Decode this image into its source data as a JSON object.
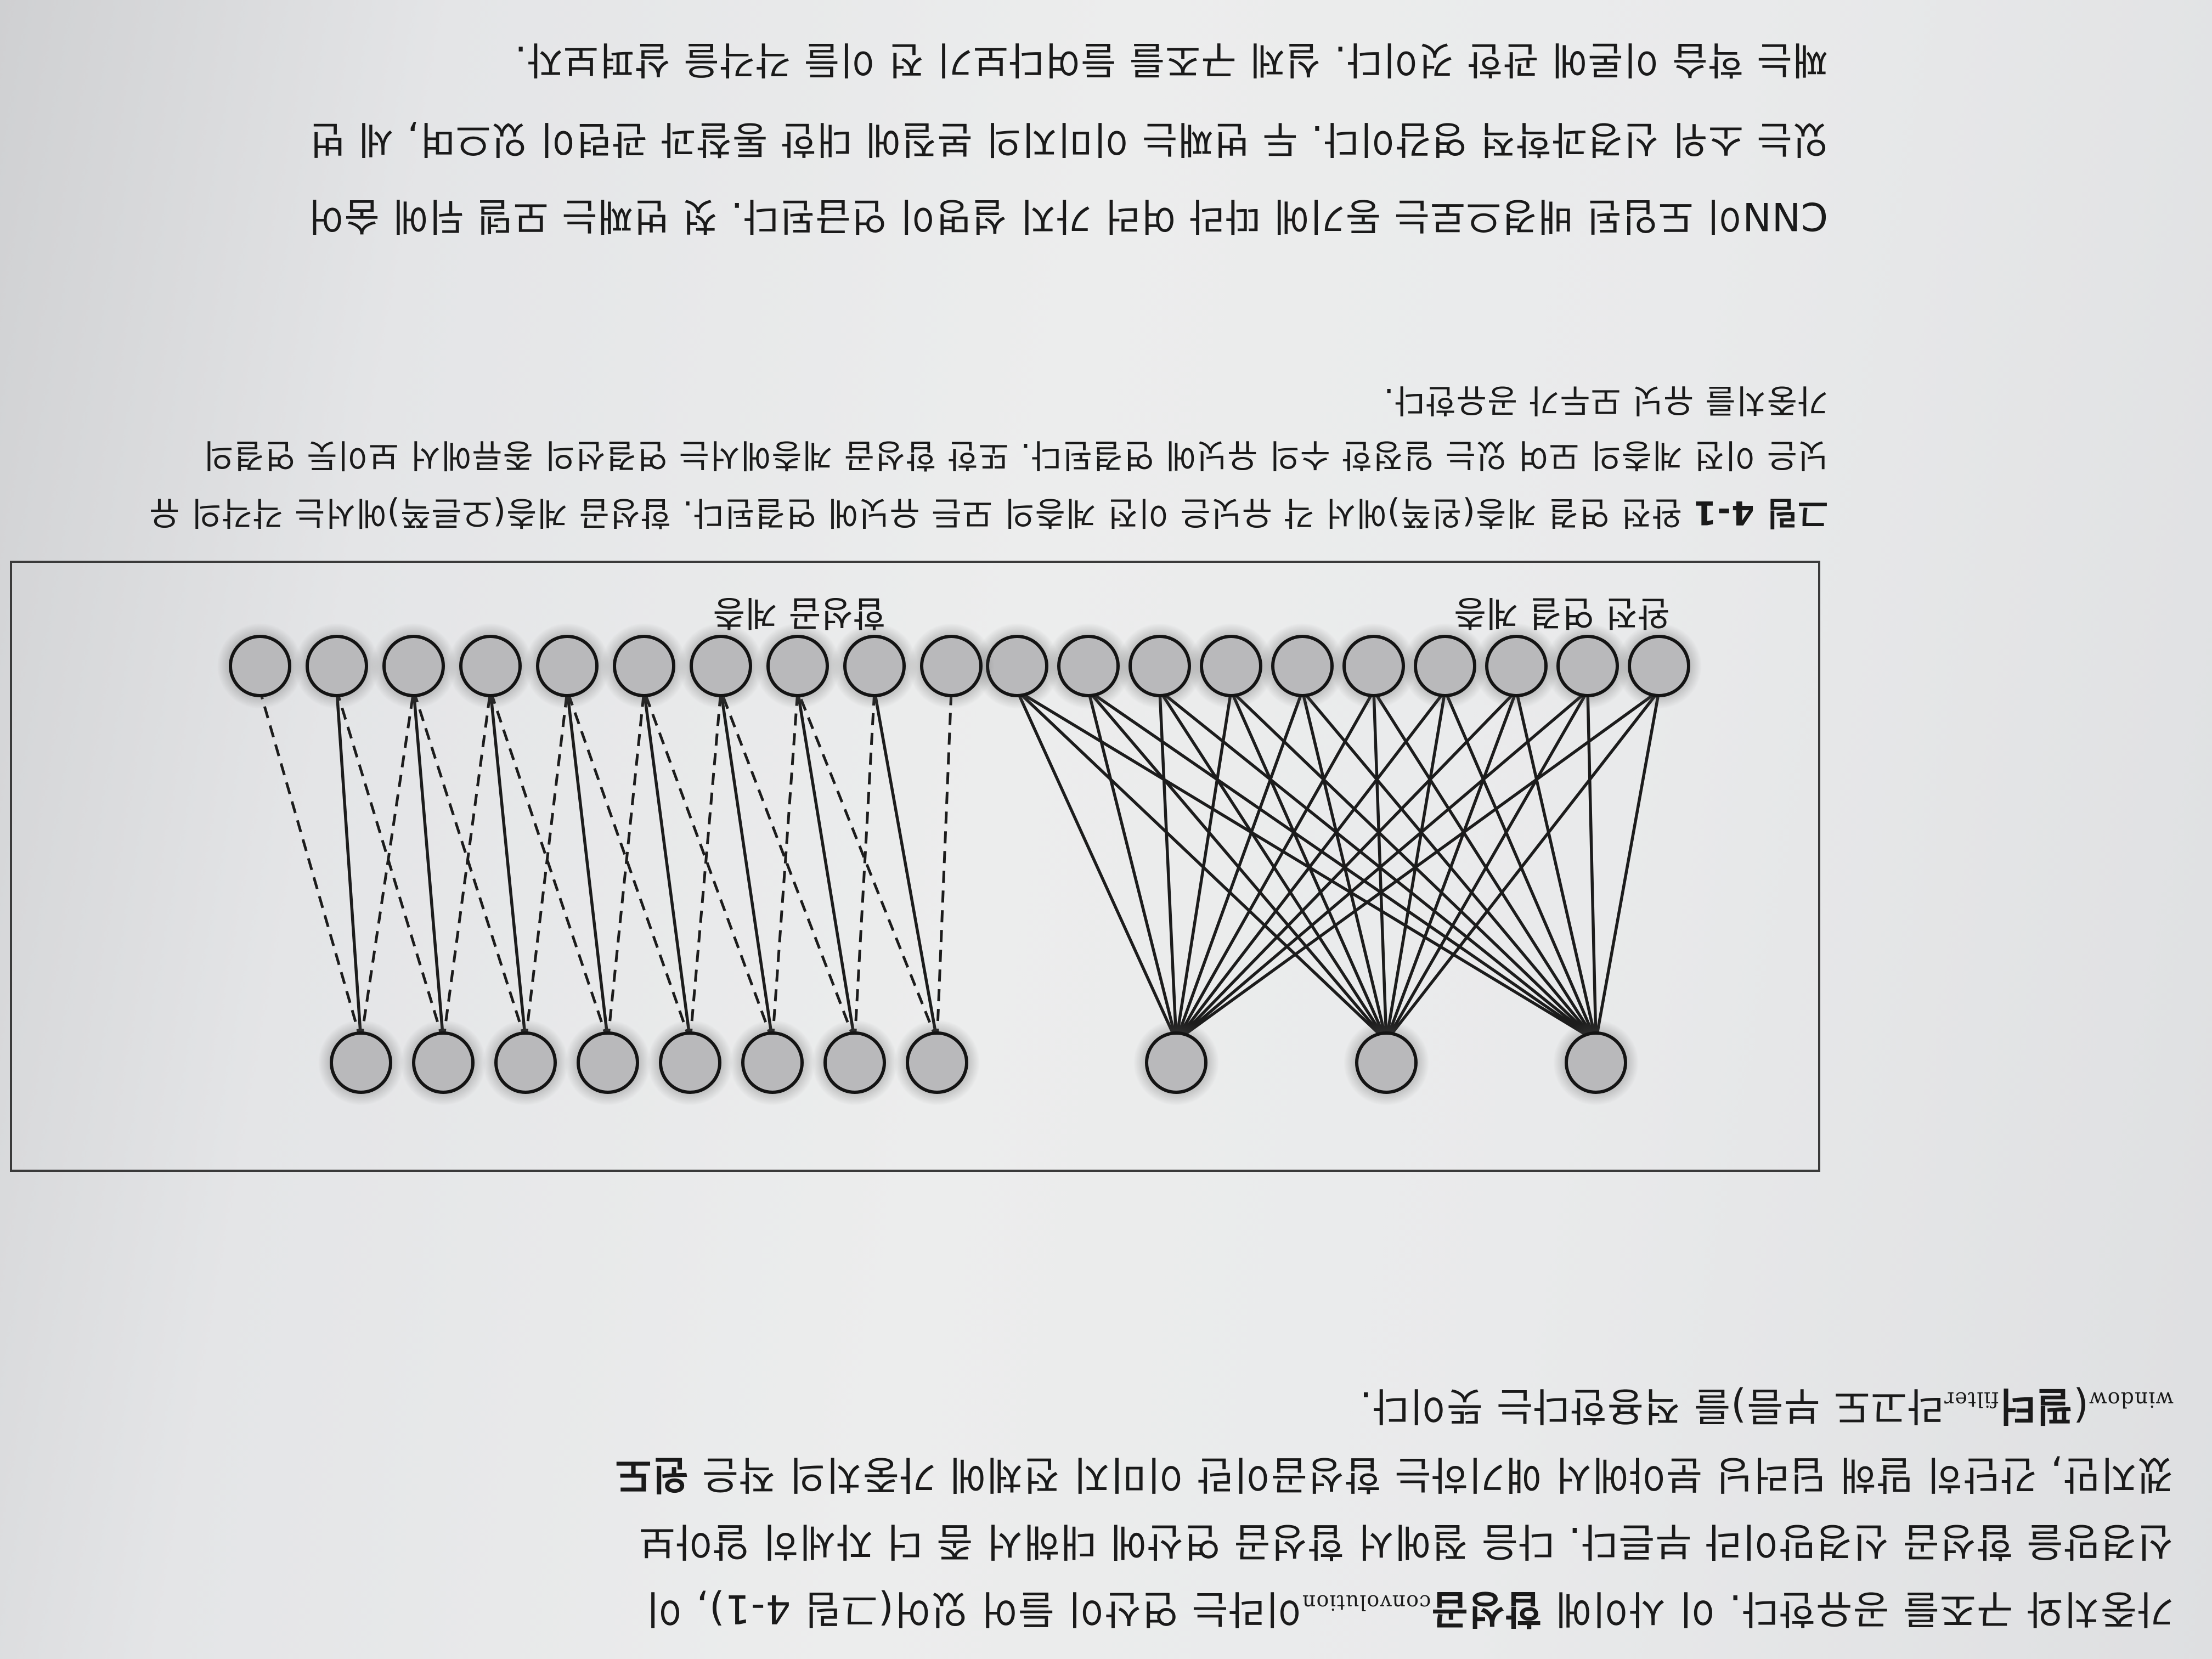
{
  "page": {
    "top_paragraph": [
      {
        "parts": [
          "가중치와 구조를 공유한다. 이 사이에 ",
          {
            "b": "합성곱"
          },
          {
            "s": "convolution"
          },
          "이라는 연산이 들어 있어(그림 4-1), 이"
        ]
      },
      {
        "parts": [
          "신경망을 합성곱 신경망이라 부른다. 다음 절에서 합성곱 연산에 대해서 좀 더 자세히 알아보"
        ]
      },
      {
        "parts": [
          "겠지만, 간단히 말해 딥러닝 분야에서 얘기하는 합성곱이란 이미지 전체에 가중치의 작은 ",
          {
            "b": "윈도"
          }
        ]
      },
      {
        "parts": [
          {
            "s": "window"
          },
          "(",
          {
            "b": "필터"
          },
          {
            "s": "filter"
          },
          "라고도 부름)를 적용한다는 뜻이다."
        ]
      }
    ],
    "figure": {
      "left_label": "완전 연결 계층",
      "right_label": "합성곱 계층"
    },
    "caption": [
      {
        "parts": [
          {
            "b": "그림 4-1"
          },
          " 완전 연결 계층(왼쪽)에서 각 유닛은 이전 계층의 모든 유닛에 연결된다. 합성곱 계층(오른쪽)에서는 각각의 유"
        ]
      },
      {
        "parts": [
          "닛은 이전 계층의 모여 있는 일정한 수의 유닛에 연결된다. 또한 합성곱 계층에서는 연결선의 종류에서 보이듯 연결의"
        ]
      },
      {
        "parts": [
          "가중치를 유닛 모두가 공유한다."
        ]
      }
    ],
    "bottom_paragraph": [
      {
        "parts": [
          "CNN이 도입된 배경으로는 동기에 따라 여러 가지 설명이 언급된다. 첫 번째는 모델 뒤에 숨어"
        ]
      },
      {
        "parts": [
          "있는 소위 신경과학적 영감이다. 두 번째는 이미지의 본질에 대한 통찰과 관련이 있으며, 세 번"
        ]
      },
      {
        "parts": [
          "째는 학습 이론에 관한 것이다. 실제 구조를 들여다보기 전 이들 각각을 살펴보자."
        ]
      }
    ]
  }
}
